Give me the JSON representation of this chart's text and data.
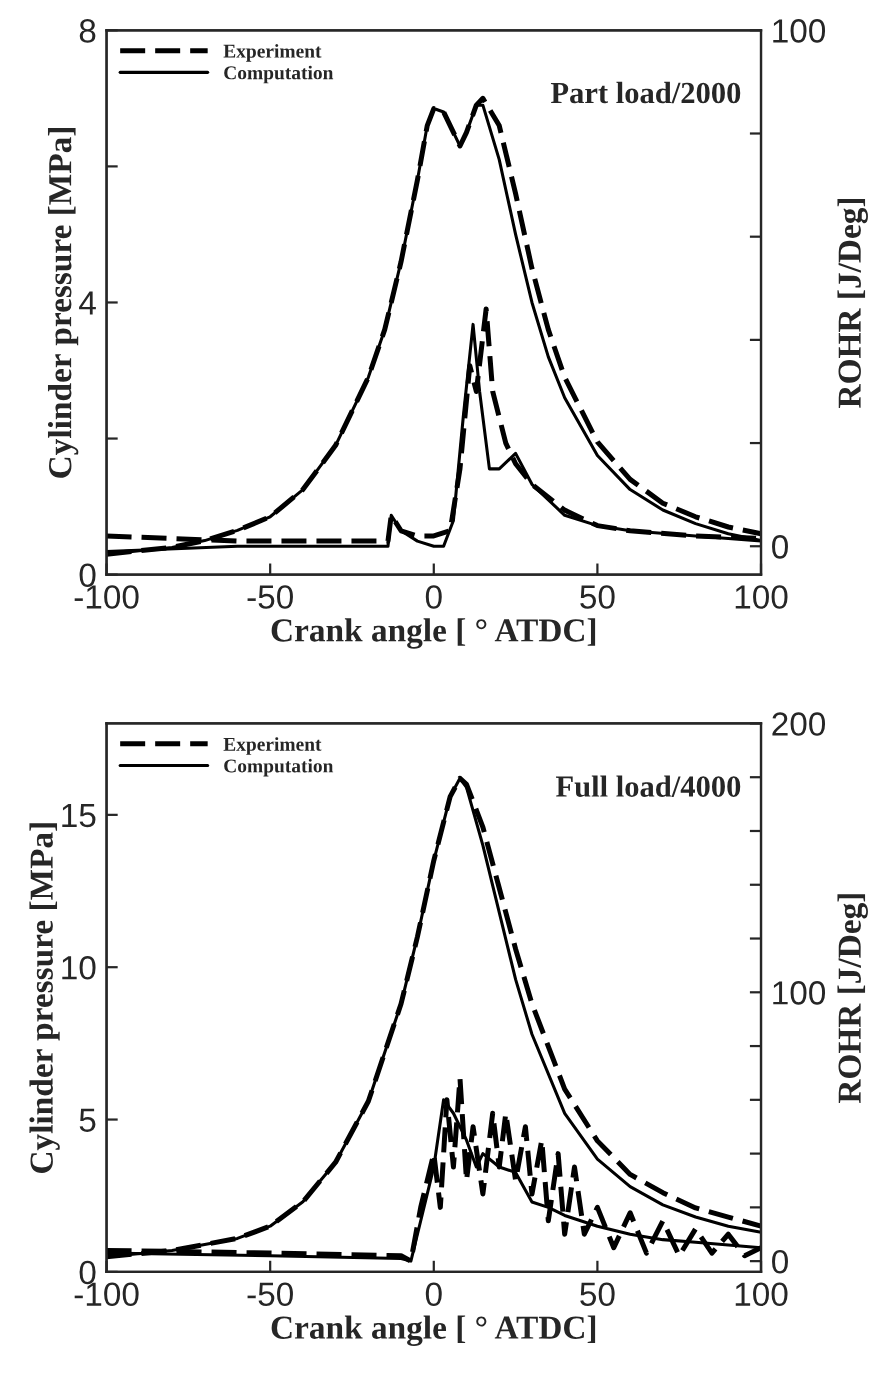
{
  "chart_data": [
    {
      "type": "line",
      "xlabel": "Crank angle [ ° ATDC]",
      "ylabel": "Cylinder pressure [MPa]",
      "y2label": "ROHR [J/Deg]",
      "annotations": [
        "Part load/2000"
      ],
      "xlim": [
        -100,
        100
      ],
      "xticks": [
        -100,
        -50,
        0,
        50,
        100
      ],
      "ylim": [
        0,
        8
      ],
      "yticks": [
        0,
        {
          "value": 2,
          "label": null
        },
        4,
        {
          "value": 6,
          "label": null
        },
        8
      ],
      "y2lim": [
        -5.5,
        100
      ],
      "y2ticks": [
        0,
        {
          "value": 20,
          "label": null
        },
        {
          "value": 40,
          "label": null
        },
        {
          "value": 60,
          "label": null
        },
        {
          "value": 80,
          "label": null
        },
        100
      ],
      "legend": "top left",
      "grid": false,
      "series": [
        {
          "name": "Experiment",
          "color": "#000000",
          "line_style": "dashed",
          "x": [
            -100,
            -90,
            -80,
            -70,
            -60,
            -50,
            -40,
            -30,
            -20,
            -15,
            -10,
            -5,
            -2,
            0,
            3,
            6,
            8,
            10,
            13,
            15,
            20,
            25,
            30,
            35,
            40,
            50,
            60,
            70,
            80,
            90,
            100
          ],
          "values": [
            0.3,
            0.35,
            0.4,
            0.5,
            0.65,
            0.85,
            1.25,
            1.9,
            2.9,
            3.6,
            4.6,
            5.8,
            6.6,
            6.85,
            6.8,
            6.5,
            6.3,
            6.5,
            6.9,
            7.0,
            6.6,
            5.6,
            4.5,
            3.6,
            2.9,
            1.95,
            1.4,
            1.05,
            0.85,
            0.7,
            0.6
          ]
        },
        {
          "name": "Computation",
          "color": "#000000",
          "line_style": "solid",
          "x": [
            -100,
            -90,
            -80,
            -70,
            -60,
            -50,
            -40,
            -30,
            -20,
            -15,
            -10,
            -5,
            -2,
            0,
            3,
            6,
            8,
            10,
            13,
            15,
            20,
            25,
            30,
            35,
            40,
            50,
            60,
            70,
            80,
            90,
            100
          ],
          "values": [
            0.3,
            0.35,
            0.4,
            0.5,
            0.65,
            0.85,
            1.25,
            1.9,
            2.9,
            3.6,
            4.6,
            5.8,
            6.6,
            6.85,
            6.8,
            6.5,
            6.3,
            6.5,
            6.9,
            6.9,
            6.1,
            5.0,
            4.0,
            3.2,
            2.6,
            1.75,
            1.25,
            0.95,
            0.75,
            0.6,
            0.5
          ]
        },
        {
          "axis": "y2",
          "color": "#000000",
          "line_style": "dashed",
          "x": [
            -100,
            -60,
            -20,
            -14,
            -13,
            -10,
            -5,
            0,
            5,
            8,
            11,
            13,
            16,
            18,
            22,
            25,
            30,
            40,
            50,
            60,
            80,
            100
          ],
          "values": [
            2,
            1,
            1,
            1,
            6,
            3,
            2,
            2,
            3,
            15,
            35,
            30,
            46,
            30,
            20,
            16,
            12,
            7,
            4,
            3,
            2,
            1.5
          ]
        },
        {
          "axis": "y2",
          "color": "#000000",
          "line_style": "solid",
          "x": [
            -100,
            -60,
            -20,
            -14,
            -13,
            -10,
            -5,
            0,
            3,
            6,
            9,
            12,
            14,
            17,
            20,
            25,
            30,
            40,
            50,
            60,
            80,
            100
          ],
          "values": [
            -1,
            0,
            0,
            0,
            6,
            3,
            1,
            0,
            0,
            5,
            25,
            43,
            30,
            15,
            15,
            18,
            12,
            6,
            4,
            3,
            2,
            1
          ]
        }
      ]
    },
    {
      "type": "line",
      "xlabel": "Crank angle [ ° ATDC]",
      "ylabel": "Cylinder pressure [MPa]",
      "y2label": "ROHR [J/Deg]",
      "annotations": [
        "Full load/4000"
      ],
      "xlim": [
        -100,
        100
      ],
      "xticks": [
        -100,
        -50,
        0,
        50,
        100
      ],
      "ylim": [
        0,
        18
      ],
      "yticks": [
        0,
        5,
        10,
        15
      ],
      "y2lim": [
        -4,
        200
      ],
      "y2ticks": [
        0,
        {
          "value": 20,
          "label": null
        },
        {
          "value": 40,
          "label": null
        },
        {
          "value": 60,
          "label": null
        },
        {
          "value": 80,
          "label": null
        },
        100,
        {
          "value": 120,
          "label": null
        },
        {
          "value": 140,
          "label": null
        },
        {
          "value": 160,
          "label": null
        },
        {
          "value": 180,
          "label": null
        },
        200
      ],
      "legend": "top left",
      "grid": false,
      "series": [
        {
          "name": "Experiment",
          "color": "#000000",
          "line_style": "dashed",
          "x": [
            -100,
            -80,
            -60,
            -50,
            -40,
            -30,
            -20,
            -10,
            -5,
            0,
            5,
            8,
            10,
            15,
            20,
            25,
            30,
            40,
            50,
            60,
            70,
            80,
            90,
            100
          ],
          "values": [
            0.5,
            0.7,
            1.1,
            1.5,
            2.3,
            3.6,
            5.6,
            8.8,
            11.0,
            13.5,
            15.6,
            16.2,
            16.0,
            14.6,
            12.6,
            10.6,
            8.8,
            6.0,
            4.3,
            3.2,
            2.6,
            2.1,
            1.8,
            1.5
          ]
        },
        {
          "name": "Computation",
          "color": "#000000",
          "line_style": "solid",
          "x": [
            -100,
            -80,
            -60,
            -50,
            -40,
            -30,
            -20,
            -10,
            -5,
            0,
            5,
            8,
            10,
            15,
            20,
            25,
            30,
            40,
            50,
            60,
            70,
            80,
            90,
            100
          ],
          "values": [
            0.5,
            0.7,
            1.1,
            1.5,
            2.3,
            3.6,
            5.6,
            8.8,
            11.0,
            13.5,
            15.6,
            16.2,
            15.9,
            14.0,
            11.8,
            9.6,
            7.8,
            5.2,
            3.7,
            2.8,
            2.2,
            1.8,
            1.5,
            1.3
          ]
        },
        {
          "axis": "y2",
          "color": "#000000",
          "line_style": "dashed",
          "x": [
            -100,
            -50,
            -10,
            -7,
            -4,
            0,
            2,
            4,
            6,
            8,
            10,
            12,
            15,
            18,
            20,
            22,
            25,
            28,
            30,
            33,
            35,
            38,
            40,
            43,
            46,
            50,
            55,
            60,
            65,
            70,
            75,
            80,
            85,
            90,
            95,
            100
          ],
          "values": [
            4,
            3,
            2,
            0,
            20,
            40,
            20,
            60,
            35,
            68,
            30,
            50,
            25,
            55,
            35,
            55,
            30,
            50,
            25,
            45,
            15,
            40,
            10,
            35,
            10,
            20,
            5,
            18,
            3,
            15,
            2,
            12,
            3,
            10,
            2,
            5
          ]
        },
        {
          "axis": "y2",
          "color": "#000000",
          "line_style": "solid",
          "x": [
            -100,
            -50,
            -10,
            -7,
            -5,
            0,
            3,
            6,
            10,
            13,
            15,
            20,
            25,
            30,
            35,
            40,
            50,
            60,
            70,
            80,
            90,
            100
          ],
          "values": [
            3,
            2,
            1,
            0,
            10,
            35,
            60,
            55,
            45,
            35,
            40,
            35,
            33,
            22,
            20,
            17,
            13,
            10,
            8,
            7,
            6,
            5
          ]
        }
      ]
    }
  ]
}
